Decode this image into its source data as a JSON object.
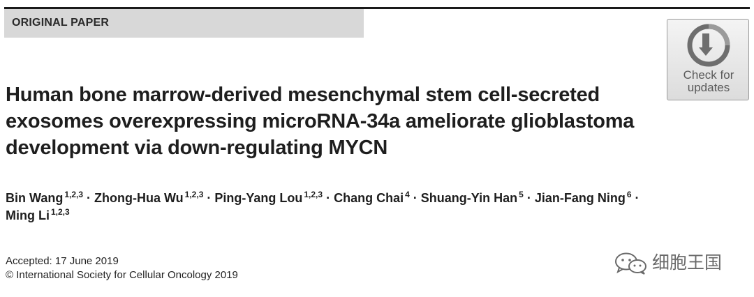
{
  "header": {
    "banner_label": "ORIGINAL PAPER"
  },
  "badge": {
    "line1": "Check for",
    "line2": "updates",
    "icon": "check-for-updates-icon"
  },
  "title": {
    "line1": "Human bone marrow-derived mesenchymal stem cell-secreted",
    "line2": "exosomes overexpressing microRNA-34a ameliorate glioblastoma",
    "line3": "development via down-regulating MYCN"
  },
  "authors": [
    {
      "name": "Bin Wang",
      "affil": "1,2,3"
    },
    {
      "name": "Zhong-Hua Wu",
      "affil": "1,2,3"
    },
    {
      "name": "Ping-Yang Lou",
      "affil": "1,2,3"
    },
    {
      "name": "Chang Chai",
      "affil": "4"
    },
    {
      "name": "Shuang-Yin Han",
      "affil": "5"
    },
    {
      "name": "Jian-Fang Ning",
      "affil": "6"
    },
    {
      "name": "Ming Li",
      "affil": "1,2,3"
    }
  ],
  "separator": "·",
  "accepted": "Accepted: 17 June 2019",
  "copyright": "© International Society for Cellular Oncology 2019",
  "watermark": {
    "text": "细胞王国",
    "icon": "wechat-icon"
  },
  "colors": {
    "banner_bg": "#d8d8d8",
    "text": "#1e1e1e",
    "watermark": "#6a6a6a"
  }
}
